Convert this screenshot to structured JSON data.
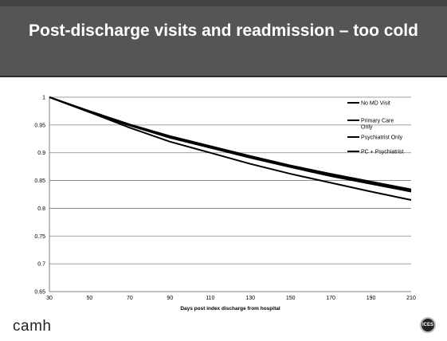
{
  "slide": {
    "title": "Post-discharge visits and readmission – too cold",
    "footer_logo": "camh",
    "badge_text": "ICES",
    "header_color": "#555555",
    "title_color": "#ffffff"
  },
  "chart_data": {
    "type": "line",
    "title": "",
    "xlabel": "Days post index discharge from hospital",
    "ylabel": "",
    "xlim": [
      30,
      210
    ],
    "ylim": [
      0.65,
      1
    ],
    "x_ticks": [
      30,
      50,
      70,
      90,
      110,
      130,
      150,
      170,
      190,
      210
    ],
    "y_ticks": [
      0.65,
      0.7,
      0.75,
      0.8,
      0.85,
      0.9,
      0.95,
      1
    ],
    "y_tick_labels": [
      "0.65",
      "0.7",
      "0.75",
      "0.8",
      "0.85",
      "0.9",
      "0.95",
      "1"
    ],
    "grid": "horizontal",
    "legend_position": "right",
    "x": [
      30,
      50,
      70,
      90,
      110,
      130,
      150,
      170,
      190,
      210
    ],
    "series": [
      {
        "name": "No MD Visit",
        "values": [
          1,
          0.973,
          0.945,
          0.92,
          0.9,
          0.88,
          0.862,
          0.846,
          0.83,
          0.815
        ]
      },
      {
        "name": "Primary Care Only",
        "values": [
          1,
          0.974,
          0.95,
          0.929,
          0.91,
          0.892,
          0.875,
          0.86,
          0.846,
          0.832
        ]
      },
      {
        "name": "Psychiatrist Only",
        "values": [
          1,
          0.975,
          0.951,
          0.93,
          0.912,
          0.894,
          0.877,
          0.862,
          0.848,
          0.834
        ]
      },
      {
        "name": "PC + Psychiatrist",
        "values": [
          1,
          0.973,
          0.949,
          0.927,
          0.909,
          0.891,
          0.874,
          0.858,
          0.844,
          0.83
        ]
      }
    ],
    "series_colors": [
      "#000000",
      "#000000",
      "#000000",
      "#000000"
    ]
  }
}
